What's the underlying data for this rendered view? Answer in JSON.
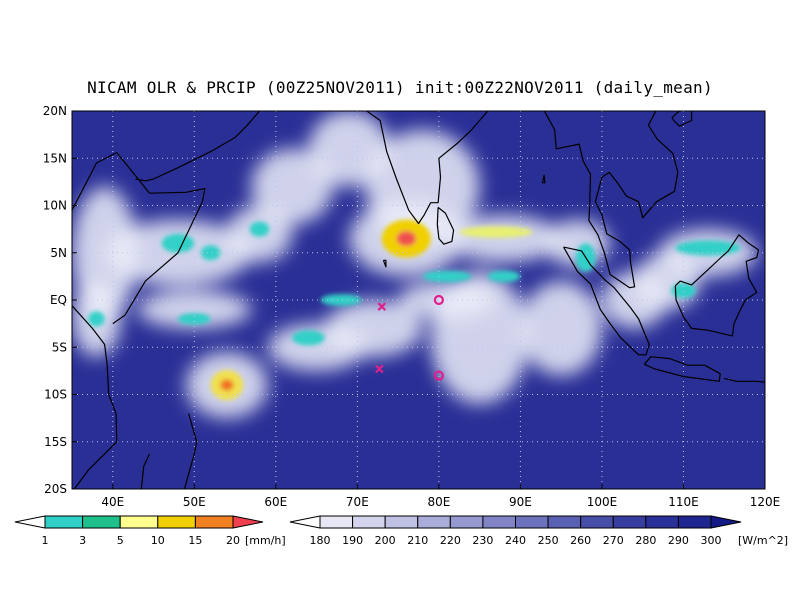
{
  "title": "NICAM OLR & PRCIP (00Z25NOV2011) init:00Z22NOV2011 (daily_mean)",
  "colors": {
    "ocean": "#2a2f96",
    "ocean_deep": "#1a1f80",
    "coast": "#000000",
    "grid": "#bfc4e8",
    "marker_circle": "#e0208a",
    "marker_cross": "#e0208a"
  },
  "map": {
    "lon_range": [
      35,
      120
    ],
    "lat_range": [
      -20,
      20
    ],
    "lon_ticks": [
      {
        "value": 40,
        "label": "40E"
      },
      {
        "value": 50,
        "label": "50E"
      },
      {
        "value": 60,
        "label": "60E"
      },
      {
        "value": 70,
        "label": "70E"
      },
      {
        "value": 80,
        "label": "80E"
      },
      {
        "value": 90,
        "label": "90E"
      },
      {
        "value": 100,
        "label": "100E"
      },
      {
        "value": 110,
        "label": "110E"
      },
      {
        "value": 120,
        "label": "120E"
      }
    ],
    "lat_ticks": [
      {
        "value": 20,
        "label": "20N"
      },
      {
        "value": 15,
        "label": "15N"
      },
      {
        "value": 10,
        "label": "10N"
      },
      {
        "value": 5,
        "label": "5N"
      },
      {
        "value": 0,
        "label": "EQ"
      },
      {
        "value": -5,
        "label": "5S"
      },
      {
        "value": -10,
        "label": "10S"
      },
      {
        "value": -15,
        "label": "15S"
      },
      {
        "value": -20,
        "label": "20S"
      }
    ],
    "grid": "dotted",
    "markers": [
      {
        "type": "circle",
        "lon": 80,
        "lat": 0
      },
      {
        "type": "circle",
        "lon": 80,
        "lat": -8
      },
      {
        "type": "cross",
        "lon": 73,
        "lat": -0.7
      },
      {
        "type": "cross",
        "lon": 72.7,
        "lat": -7.3
      }
    ],
    "cloud_features": [
      {
        "lon": 78,
        "lat": 12,
        "rx": 7,
        "ry": 6
      },
      {
        "lon": 76,
        "lat": 6.5,
        "rx": 7,
        "ry": 4
      },
      {
        "lon": 88,
        "lat": 6.5,
        "rx": 7,
        "ry": 2.5
      },
      {
        "lon": 97,
        "lat": 6,
        "rx": 4,
        "ry": 2.5
      },
      {
        "lon": 48,
        "lat": 5,
        "rx": 9,
        "ry": 3.5
      },
      {
        "lon": 58,
        "lat": 7,
        "rx": 4,
        "ry": 3
      },
      {
        "lon": 39,
        "lat": 5,
        "rx": 4,
        "ry": 7
      },
      {
        "lon": 38,
        "lat": -2,
        "rx": 3,
        "ry": 4
      },
      {
        "lon": 54,
        "lat": -9,
        "rx": 5,
        "ry": 3.5
      },
      {
        "lon": 65,
        "lat": -5,
        "rx": 6,
        "ry": 2.5
      },
      {
        "lon": 72,
        "lat": -3,
        "rx": 6,
        "ry": 3
      },
      {
        "lon": 85,
        "lat": -4,
        "rx": 6,
        "ry": 7
      },
      {
        "lon": 95,
        "lat": -3,
        "rx": 5,
        "ry": 5
      },
      {
        "lon": 81,
        "lat": 0,
        "rx": 6,
        "ry": 2
      },
      {
        "lon": 50,
        "lat": -1,
        "rx": 7,
        "ry": 2
      },
      {
        "lon": 113,
        "lat": 5,
        "rx": 6,
        "ry": 2.5
      },
      {
        "lon": 104,
        "lat": 0,
        "rx": 4,
        "ry": 3
      },
      {
        "lon": 108,
        "lat": 2,
        "rx": 4,
        "ry": 3
      },
      {
        "lon": 62,
        "lat": 12,
        "rx": 5,
        "ry": 4
      },
      {
        "lon": 69,
        "lat": 16,
        "rx": 5,
        "ry": 4
      }
    ],
    "precip_features": [
      {
        "lon": 76,
        "lat": 6.5,
        "rx": 3,
        "ry": 2,
        "color": "#f0d000"
      },
      {
        "lon": 76,
        "lat": 6.5,
        "rx": 1.2,
        "ry": 0.8,
        "color": "#f05050"
      },
      {
        "lon": 87,
        "lat": 7.2,
        "rx": 4.5,
        "ry": 0.6,
        "color": "#e8f070"
      },
      {
        "lon": 54,
        "lat": -9,
        "rx": 2,
        "ry": 1.6,
        "color": "#f0e050"
      },
      {
        "lon": 54,
        "lat": -9,
        "rx": 0.8,
        "ry": 0.6,
        "color": "#f07020"
      },
      {
        "lon": 48,
        "lat": 6,
        "rx": 2,
        "ry": 1,
        "color": "#30d0c8"
      },
      {
        "lon": 52,
        "lat": 5,
        "rx": 1.2,
        "ry": 0.8,
        "color": "#30d0c8"
      },
      {
        "lon": 58,
        "lat": 7.5,
        "rx": 1.2,
        "ry": 0.8,
        "color": "#30d0c8"
      },
      {
        "lon": 38,
        "lat": -2,
        "rx": 1,
        "ry": 0.8,
        "color": "#30d0c8"
      },
      {
        "lon": 50,
        "lat": -2,
        "rx": 2,
        "ry": 0.6,
        "color": "#30d0c8"
      },
      {
        "lon": 68,
        "lat": 0,
        "rx": 2.5,
        "ry": 0.6,
        "color": "#30d0c8"
      },
      {
        "lon": 81,
        "lat": 2.5,
        "rx": 3,
        "ry": 0.6,
        "color": "#30d0c8"
      },
      {
        "lon": 98,
        "lat": 4.5,
        "rx": 1.2,
        "ry": 1.5,
        "color": "#30d0c8"
      },
      {
        "lon": 113,
        "lat": 5.5,
        "rx": 4,
        "ry": 0.8,
        "color": "#30d0c8"
      },
      {
        "lon": 110,
        "lat": 1,
        "rx": 1.5,
        "ry": 0.8,
        "color": "#30d0c8"
      },
      {
        "lon": 64,
        "lat": -4,
        "rx": 2,
        "ry": 0.8,
        "color": "#30d0c8"
      },
      {
        "lon": 88,
        "lat": 2.5,
        "rx": 2,
        "ry": 0.6,
        "color": "#30d0c8"
      }
    ],
    "coastlines": [
      [
        [
          35,
          -0.6
        ],
        [
          37.5,
          -3
        ],
        [
          39,
          -4.7
        ],
        [
          39.3,
          -6.8
        ],
        [
          39.5,
          -10
        ],
        [
          40.4,
          -12
        ],
        [
          40.5,
          -15
        ],
        [
          37,
          -18
        ],
        [
          35.3,
          -20
        ]
      ],
      [
        [
          35,
          9.5
        ],
        [
          38,
          14.5
        ],
        [
          40.5,
          15.6
        ],
        [
          43.3,
          12.6
        ],
        [
          44.5,
          11.3
        ],
        [
          49,
          11.4
        ],
        [
          51.3,
          11.8
        ],
        [
          51,
          10.4
        ],
        [
          48,
          5
        ],
        [
          44,
          2
        ],
        [
          41.5,
          -1.6
        ],
        [
          40,
          -2.5
        ]
      ],
      [
        [
          42.8,
          12.8
        ],
        [
          44,
          12.6
        ],
        [
          45,
          12.8
        ],
        [
          48,
          14
        ],
        [
          52,
          15.7
        ],
        [
          55,
          17.2
        ],
        [
          56.5,
          18.5
        ],
        [
          58,
          20
        ]
      ],
      [
        [
          66.5,
          20
        ],
        [
          69,
          22
        ],
        [
          70,
          20.7
        ],
        [
          72.8,
          19
        ],
        [
          73.6,
          15.7
        ],
        [
          74.8,
          12.8
        ],
        [
          76.3,
          9.5
        ],
        [
          77.5,
          8.1
        ],
        [
          78.2,
          9
        ],
        [
          79,
          10.3
        ],
        [
          79.9,
          10.3
        ],
        [
          80.2,
          13
        ],
        [
          80,
          15
        ],
        [
          82.3,
          16.6
        ],
        [
          84,
          18
        ],
        [
          86,
          20
        ]
      ],
      [
        [
          91,
          22
        ],
        [
          92,
          20.8
        ],
        [
          92.3,
          21
        ],
        [
          94.2,
          18
        ],
        [
          94.4,
          16
        ],
        [
          97.2,
          16.5
        ],
        [
          97.7,
          14.7
        ],
        [
          98.6,
          13.3
        ],
        [
          98.5,
          10
        ],
        [
          98.4,
          8.4
        ],
        [
          99.5,
          6.9
        ],
        [
          100.3,
          5
        ],
        [
          101,
          2.7
        ],
        [
          103.4,
          1.3
        ],
        [
          104,
          1.4
        ],
        [
          103.5,
          4
        ],
        [
          103.4,
          5.3
        ],
        [
          102.2,
          6.2
        ],
        [
          100.6,
          7
        ],
        [
          100,
          9
        ],
        [
          99.2,
          10.4
        ],
        [
          100,
          13
        ],
        [
          100.9,
          13.5
        ],
        [
          102,
          12.3
        ],
        [
          103,
          11
        ],
        [
          104.5,
          10.4
        ],
        [
          105,
          8.7
        ],
        [
          106.7,
          10.4
        ],
        [
          108.9,
          11.5
        ],
        [
          109.3,
          13.5
        ],
        [
          108.7,
          15.5
        ],
        [
          106.8,
          17
        ],
        [
          105.7,
          18.5
        ],
        [
          106.6,
          20
        ]
      ],
      [
        [
          110,
          20.4
        ],
        [
          111,
          20
        ],
        [
          111,
          19
        ],
        [
          109.5,
          18.4
        ],
        [
          108.8,
          19
        ],
        [
          108.6,
          19.3
        ],
        [
          110,
          20.4
        ]
      ],
      [
        [
          95.3,
          5.6
        ],
        [
          97.5,
          5.2
        ],
        [
          98.6,
          3.7
        ],
        [
          100.4,
          2.1
        ],
        [
          101.5,
          1.3
        ],
        [
          103.5,
          -0.8
        ],
        [
          104.5,
          -2
        ],
        [
          105.8,
          -4.7
        ],
        [
          105.4,
          -5.8
        ],
        [
          104.5,
          -5.8
        ],
        [
          102.3,
          -4
        ],
        [
          101,
          -2.5
        ],
        [
          99.8,
          -1
        ],
        [
          98.6,
          1.7
        ],
        [
          97,
          3
        ],
        [
          95.3,
          5.6
        ]
      ],
      [
        [
          105.2,
          -6.8
        ],
        [
          106,
          -6
        ],
        [
          108.3,
          -6.2
        ],
        [
          110.5,
          -6.9
        ],
        [
          112.6,
          -6.9
        ],
        [
          114.5,
          -7.8
        ],
        [
          114.4,
          -8.6
        ],
        [
          110,
          -8.1
        ],
        [
          106.5,
          -7.3
        ],
        [
          105.2,
          -6.8
        ]
      ],
      [
        [
          115,
          -8.3
        ],
        [
          116.5,
          -8.6
        ],
        [
          119,
          -8.6
        ],
        [
          120,
          -8.7
        ]
      ],
      [
        [
          109,
          1.5
        ],
        [
          109.6,
          2
        ],
        [
          111,
          1.6
        ],
        [
          113,
          3.2
        ],
        [
          114.6,
          4.5
        ],
        [
          115.5,
          5.2
        ],
        [
          116.8,
          6.9
        ],
        [
          118,
          6
        ],
        [
          119.2,
          5.3
        ],
        [
          119,
          4.5
        ],
        [
          117.7,
          4.1
        ],
        [
          118,
          2.3
        ],
        [
          119,
          0.8
        ],
        [
          117.6,
          0
        ],
        [
          117,
          -1
        ],
        [
          116.2,
          -2.5
        ],
        [
          116,
          -3.8
        ],
        [
          114.5,
          -3.5
        ],
        [
          113,
          -3.2
        ],
        [
          111,
          -3
        ],
        [
          110,
          -1.8
        ],
        [
          109.1,
          0
        ],
        [
          109,
          1.5
        ]
      ],
      [
        [
          120,
          0.4
        ],
        [
          120.5,
          1.3
        ],
        [
          120,
          -1.5
        ],
        [
          120.5,
          -5.5
        ]
      ],
      [
        [
          79.9,
          9.8
        ],
        [
          80.8,
          9.2
        ],
        [
          81.8,
          7.4
        ],
        [
          81.6,
          6.2
        ],
        [
          80.6,
          5.9
        ],
        [
          80,
          6.5
        ],
        [
          79.8,
          8
        ],
        [
          79.9,
          9.8
        ]
      ],
      [
        [
          49.3,
          -12
        ],
        [
          50.3,
          -15
        ],
        [
          50,
          -16.3
        ],
        [
          49.6,
          -17.5
        ],
        [
          48.8,
          -20
        ]
      ],
      [
        [
          44.5,
          -16.3
        ],
        [
          43.8,
          -17.6
        ],
        [
          43.5,
          -20
        ]
      ],
      [
        [
          92.7,
          12.4
        ],
        [
          92.9,
          13.2
        ],
        [
          93,
          12.4
        ],
        [
          92.7,
          12.4
        ]
      ],
      [
        [
          73.2,
          4.2
        ],
        [
          73.5,
          4.2
        ],
        [
          73.5,
          3.5
        ],
        [
          73.2,
          4.2
        ]
      ]
    ]
  },
  "legend_precip": {
    "unit": "[mm/h]",
    "labels": [
      "1",
      "3",
      "5",
      "10",
      "15",
      "20"
    ],
    "colors": [
      "#ffffff",
      "#30d0c8",
      "#20c08c",
      "#ffff90",
      "#f0d000",
      "#f08020",
      "#f04050"
    ]
  },
  "legend_olr": {
    "unit": "[W/m^2]",
    "labels": [
      "180",
      "190",
      "200",
      "210",
      "220",
      "230",
      "240",
      "250",
      "260",
      "270",
      "280",
      "290",
      "300"
    ],
    "colors": [
      "#ffffff",
      "#e6e6f4",
      "#d3d4ec",
      "#bfc1e3",
      "#aaadda",
      "#9599d0",
      "#8185c6",
      "#6d72bc",
      "#5a60b2",
      "#474ea8",
      "#373e9f",
      "#2a3198",
      "#1f268f",
      "#141a85"
    ]
  }
}
